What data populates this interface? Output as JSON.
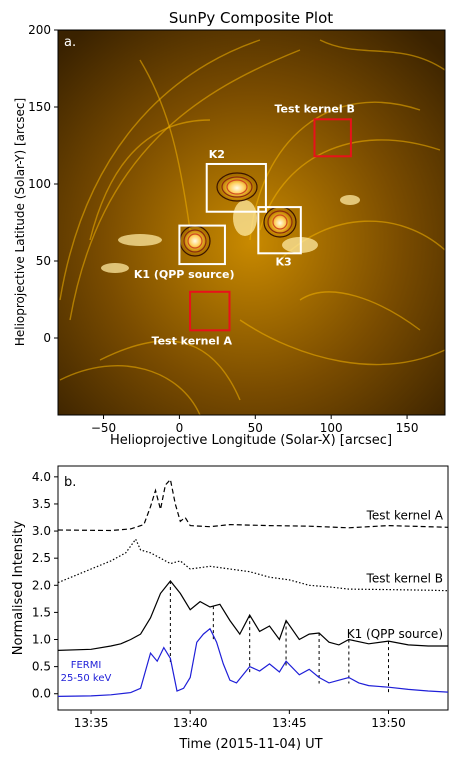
{
  "figure": {
    "panel_a": {
      "title": "SunPy Composite Plot",
      "panel_label": "a.",
      "xlabel": "Helioprojective Longitude (Solar-X) [arcsec]",
      "ylabel": "Helioprojective Latitude (Solar-Y) [arcsec]",
      "image_colormap": "gold",
      "box_white": "#ffffff",
      "box_red": "#e8121a"
    },
    "panel_b": {
      "panel_label": "b.",
      "xlabel": "Time (2015-11-04) UT",
      "ylabel": "Normalised Intensity",
      "fermi_label_line1": "FERMI",
      "fermi_label_line2": "25-50 keV",
      "fermi_color": "#1f1fd8"
    }
  },
  "chart_data": [
    {
      "type": "heatmap",
      "title": "SunPy Composite Plot",
      "xlabel": "Helioprojective Longitude (Solar-X) [arcsec]",
      "ylabel": "Helioprojective Latitude (Solar-Y) [arcsec]",
      "xlim": [
        -80,
        175
      ],
      "ylim": [
        -50,
        200
      ],
      "xticks": [
        -50,
        0,
        50,
        100,
        150
      ],
      "xtick_labels": [
        "−50",
        "0",
        "50",
        "100",
        "150"
      ],
      "yticks": [
        0,
        50,
        100,
        150,
        200
      ],
      "ytick_labels": [
        "0",
        "50",
        "100",
        "150",
        "200"
      ],
      "grid": false,
      "regions": [
        {
          "label": "K1 (QPP source)",
          "color": "white",
          "x": [
            0,
            30
          ],
          "y": [
            48,
            73
          ],
          "contour_center": [
            15,
            62
          ]
        },
        {
          "label": "K2",
          "color": "white",
          "x": [
            18,
            57
          ],
          "y": [
            82,
            113
          ],
          "contour_center": [
            39,
            97
          ]
        },
        {
          "label": "K3",
          "color": "white",
          "x": [
            52,
            80
          ],
          "y": [
            55,
            85
          ],
          "contour_center": [
            69,
            70
          ]
        },
        {
          "label": "Test kernel A",
          "color": "red",
          "x": [
            7,
            33
          ],
          "y": [
            5,
            30
          ]
        },
        {
          "label": "Test kernel B",
          "color": "red",
          "x": [
            89,
            113
          ],
          "y": [
            118,
            142
          ]
        }
      ]
    },
    {
      "type": "line",
      "xlabel": "Time (2015-11-04) UT",
      "ylabel": "Normalised Intensity",
      "xlim": [
        "13:33:20",
        "13:53:00"
      ],
      "ylim": [
        -0.3,
        4.2
      ],
      "xticks": [
        "13:35",
        "13:40",
        "13:45",
        "13:50"
      ],
      "yticks": [
        0.0,
        0.5,
        1.0,
        1.5,
        2.0,
        2.5,
        3.0,
        3.5,
        4.0
      ],
      "ytick_labels": [
        "0.0",
        "0.5",
        "1.0",
        "1.5",
        "2.0",
        "2.5",
        "3.0",
        "3.5",
        "4.0"
      ],
      "grid": false,
      "vertical_lines": [
        "13:39:00",
        "13:41:10",
        "13:43:00",
        "13:44:50",
        "13:46:30",
        "13:48:00",
        "13:50:00"
      ],
      "series": [
        {
          "name": "Test kernel A",
          "style": "dashed",
          "color": "#000000",
          "x": [
            "13:33:20",
            "13:36:00",
            "13:37:00",
            "13:37:40",
            "13:38:00",
            "13:38:15",
            "13:38:30",
            "13:38:45",
            "13:39:00",
            "13:39:15",
            "13:39:30",
            "13:39:45",
            "13:40:00",
            "13:41:00",
            "13:42:00",
            "13:44:00",
            "13:46:00",
            "13:48:00",
            "13:50:00",
            "13:52:00",
            "13:53:00"
          ],
          "y": [
            3.02,
            3.01,
            3.04,
            3.12,
            3.45,
            3.75,
            3.4,
            3.85,
            3.95,
            3.5,
            3.18,
            3.25,
            3.1,
            3.08,
            3.12,
            3.1,
            3.09,
            3.06,
            3.1,
            3.08,
            3.07
          ]
        },
        {
          "name": "Test kernel B",
          "style": "dotted",
          "color": "#000000",
          "x": [
            "13:33:20",
            "13:34:00",
            "13:35:00",
            "13:36:00",
            "13:36:45",
            "13:37:15",
            "13:37:30",
            "13:38:00",
            "13:38:30",
            "13:39:00",
            "13:39:30",
            "13:40:00",
            "13:41:00",
            "13:42:00",
            "13:43:00",
            "13:44:00",
            "13:45:00",
            "13:46:00",
            "13:47:00",
            "13:48:00",
            "13:50:00",
            "13:52:00",
            "13:53:00"
          ],
          "y": [
            2.05,
            2.15,
            2.3,
            2.45,
            2.6,
            2.85,
            2.65,
            2.6,
            2.5,
            2.4,
            2.45,
            2.3,
            2.35,
            2.3,
            2.25,
            2.15,
            2.1,
            2.0,
            1.97,
            1.93,
            1.92,
            1.91,
            1.9
          ]
        },
        {
          "name": "K1 (QPP source)",
          "style": "solid",
          "color": "#000000",
          "x": [
            "13:33:20",
            "13:35:00",
            "13:36:00",
            "13:36:30",
            "13:37:00",
            "13:37:30",
            "13:38:00",
            "13:38:30",
            "13:39:00",
            "13:39:30",
            "13:40:00",
            "13:40:30",
            "13:41:00",
            "13:41:30",
            "13:42:00",
            "13:42:30",
            "13:43:00",
            "13:43:30",
            "13:44:00",
            "13:44:30",
            "13:44:50",
            "13:45:30",
            "13:46:00",
            "13:46:30",
            "13:47:00",
            "13:47:30",
            "13:48:00",
            "13:49:00",
            "13:50:00",
            "13:51:00",
            "13:52:00",
            "13:53:00"
          ],
          "y": [
            0.8,
            0.82,
            0.88,
            0.92,
            1.0,
            1.1,
            1.4,
            1.85,
            2.08,
            1.85,
            1.55,
            1.7,
            1.6,
            1.65,
            1.35,
            1.1,
            1.45,
            1.15,
            1.25,
            1.0,
            1.35,
            1.0,
            1.1,
            1.12,
            0.95,
            0.9,
            1.0,
            0.92,
            0.97,
            0.9,
            0.88,
            0.88
          ]
        },
        {
          "name": "FERMI 25-50 keV",
          "style": "solid",
          "color": "#1f1fd8",
          "x": [
            "13:33:20",
            "13:35:00",
            "13:36:00",
            "13:37:00",
            "13:37:30",
            "13:38:00",
            "13:38:20",
            "13:38:40",
            "13:39:00",
            "13:39:20",
            "13:39:40",
            "13:40:00",
            "13:40:20",
            "13:40:40",
            "13:41:00",
            "13:41:20",
            "13:41:40",
            "13:42:00",
            "13:42:20",
            "13:42:40",
            "13:43:00",
            "13:43:30",
            "13:44:00",
            "13:44:30",
            "13:44:50",
            "13:45:30",
            "13:46:00",
            "13:46:30",
            "13:47:00",
            "13:47:30",
            "13:48:00",
            "13:48:30",
            "13:49:00",
            "13:50:00",
            "13:51:00",
            "13:52:00",
            "13:53:00"
          ],
          "y": [
            -0.05,
            -0.04,
            -0.02,
            0.02,
            0.1,
            0.75,
            0.6,
            0.85,
            0.65,
            0.05,
            0.1,
            0.3,
            0.95,
            1.1,
            1.2,
            0.95,
            0.55,
            0.25,
            0.2,
            0.35,
            0.5,
            0.42,
            0.55,
            0.4,
            0.6,
            0.35,
            0.45,
            0.3,
            0.2,
            0.25,
            0.3,
            0.2,
            0.15,
            0.12,
            0.08,
            0.05,
            0.03
          ]
        }
      ],
      "series_labels": [
        {
          "series": "Test kernel A",
          "text": "Test kernel A"
        },
        {
          "series": "Test kernel B",
          "text": "Test kernel B"
        },
        {
          "series": "K1 (QPP source)",
          "text": "K1 (QPP source)"
        }
      ]
    }
  ]
}
